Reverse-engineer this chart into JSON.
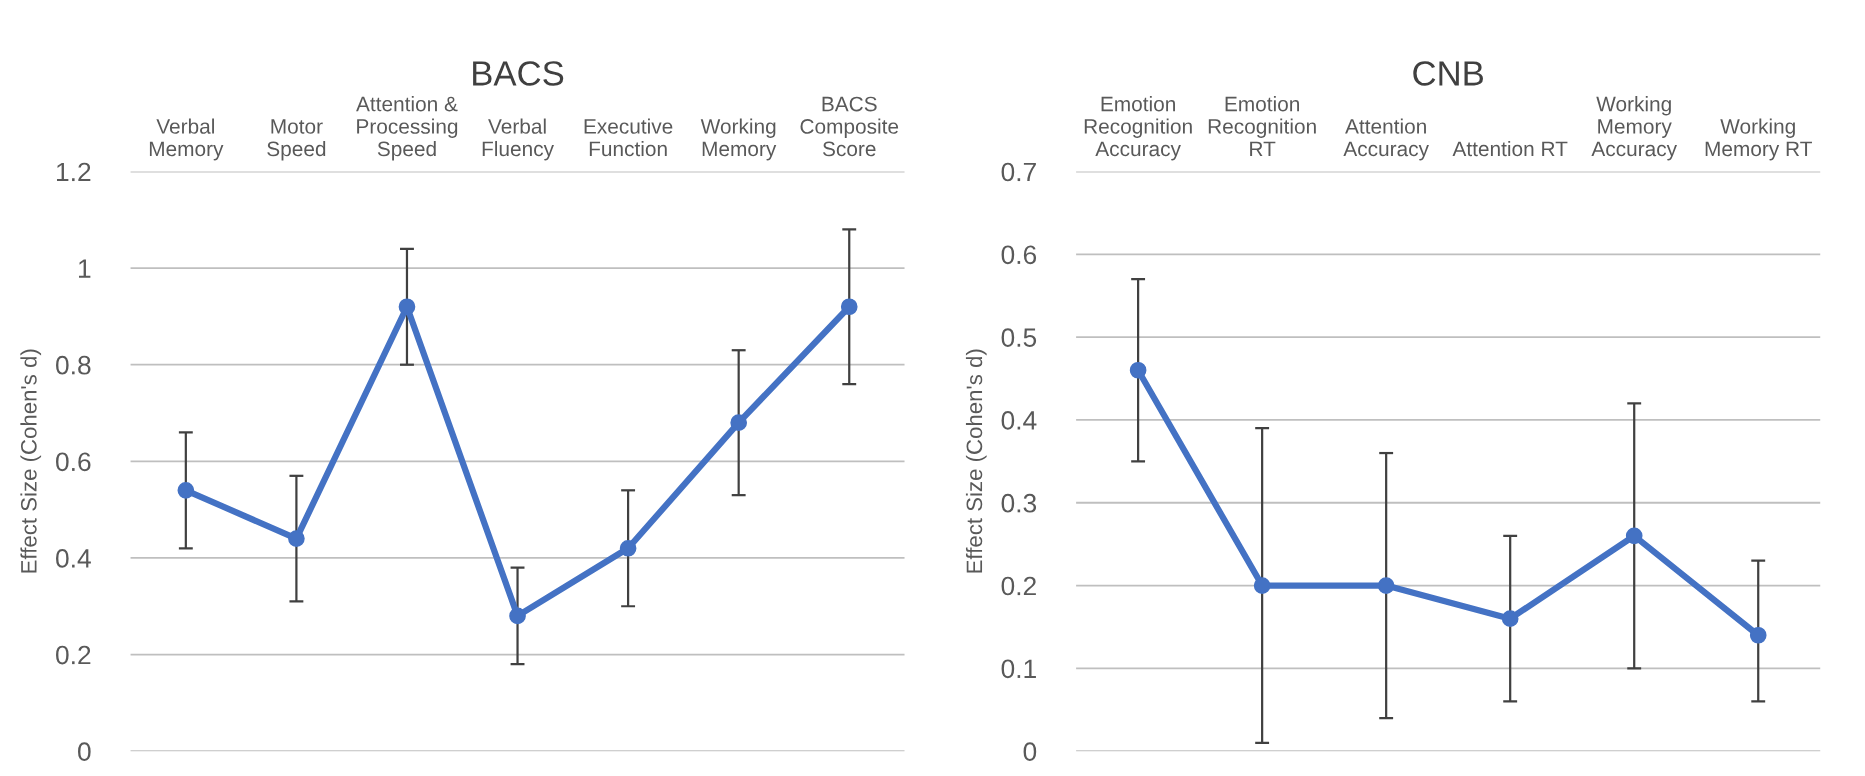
{
  "chart_data": [
    {
      "type": "line",
      "title": "BACS",
      "ylabel": "Effect Size (Cohen's d)",
      "categories": [
        "Verbal\nMemory",
        "Motor\nSpeed",
        "Attention &\nProcessing\nSpeed",
        "Verbal\nFluency",
        "Executive\nFunction",
        "Working\nMemory",
        "BACS\nComposite\nScore"
      ],
      "series": [
        {
          "color": "#4472c4",
          "values": [
            0.54,
            0.44,
            0.92,
            0.28,
            0.42,
            0.68,
            0.92
          ],
          "errors": [
            [
              0.42,
              0.66
            ],
            [
              0.31,
              0.57
            ],
            [
              0.8,
              1.04
            ],
            [
              0.18,
              0.38
            ],
            [
              0.3,
              0.54
            ],
            [
              0.53,
              0.83
            ],
            [
              0.76,
              1.08
            ]
          ]
        }
      ],
      "ylim": [
        0,
        1.2
      ],
      "yticks": [
        0,
        {
          "value": 0.2,
          "label": "0.2"
        },
        {
          "value": 0.4,
          "label": "0.4"
        },
        {
          "value": 0.6,
          "label": "0.6"
        },
        {
          "value": 0.8,
          "label": "0.8"
        },
        1,
        {
          "value": 1.2,
          "label": "1.2"
        }
      ],
      "grid": "y",
      "marker": "circle"
    },
    {
      "type": "line",
      "title": "CNB",
      "ylabel": "Effect Size (Cohen's d)",
      "categories": [
        "Emotion\nRecognition\nAccuracy",
        "Emotion\nRecognition\nRT",
        "Attention\nAccuracy",
        "Attention RT",
        "Working\nMemory\nAccuracy",
        "Working\nMemory RT"
      ],
      "series": [
        {
          "color": "#4472c4",
          "values": [
            0.46,
            0.2,
            0.2,
            0.16,
            0.26,
            0.14
          ],
          "errors": [
            [
              0.35,
              0.57
            ],
            [
              0.01,
              0.39
            ],
            [
              0.04,
              0.36
            ],
            [
              0.06,
              0.26
            ],
            [
              0.1,
              0.42
            ],
            [
              0.06,
              0.23
            ]
          ]
        }
      ],
      "ylim": [
        0,
        0.7
      ],
      "yticks": [
        0,
        0.1,
        0.2,
        0.3,
        0.4,
        0.5,
        0.6,
        0.7
      ],
      "grid": "y",
      "marker": "circle"
    }
  ]
}
